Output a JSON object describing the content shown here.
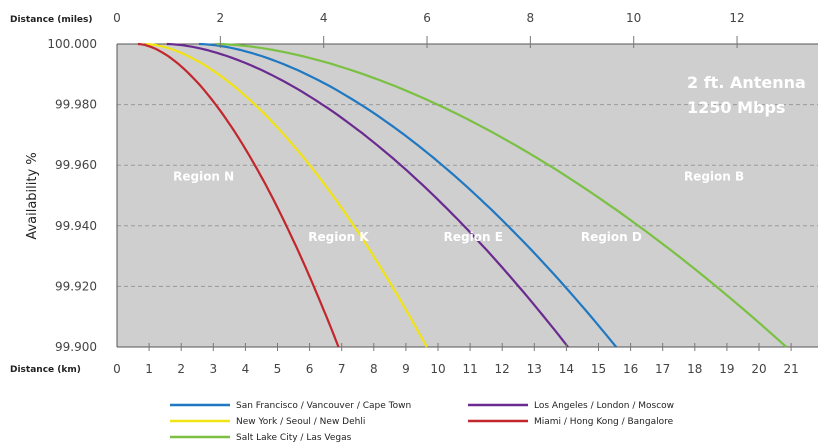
{
  "chart_data": {
    "type": "line",
    "ylabel": "Availability %",
    "top_axis_label": "Distance (miles)",
    "bottom_axis_label": "Distance (km)",
    "top_ticks": [
      "0",
      "2",
      "4",
      "6",
      "8",
      "10",
      "12"
    ],
    "top_tick_values": [
      0,
      2,
      4,
      6,
      8,
      10,
      12
    ],
    "xticks": [
      "0",
      "1",
      "2",
      "3",
      "4",
      "5",
      "6",
      "7",
      "8",
      "9",
      "10",
      "11",
      "12",
      "13",
      "14",
      "15",
      "16",
      "17",
      "18",
      "19",
      "20",
      "21"
    ],
    "yticks": [
      "99.900",
      "99.920",
      "99.940",
      "99.960",
      "99.980",
      "100.000"
    ],
    "ytick_values": [
      99.9,
      99.92,
      99.94,
      99.96,
      99.98,
      100.0
    ],
    "xlim": [
      0,
      21
    ],
    "ylim": [
      99.9,
      100.0
    ],
    "grid": true,
    "annotation_lines": [
      "2 ft. Antenna",
      "1250 Mbps"
    ],
    "regions": [
      {
        "label": "Region N",
        "x": 2.7,
        "y": 99.955
      },
      {
        "label": "Region K",
        "x": 6.9,
        "y": 99.935
      },
      {
        "label": "Region E",
        "x": 11.1,
        "y": 99.935
      },
      {
        "label": "Region D",
        "x": 15.4,
        "y": 99.935
      },
      {
        "label": "Region B",
        "x": 18.6,
        "y": 99.955
      }
    ],
    "series": [
      {
        "name": "San Francisco / Vancouver / Cape Town",
        "color": "#1f78c1",
        "x0": 2.55,
        "x1": 15.55
      },
      {
        "name": "Los Angeles / London / Moscow",
        "color": "#6a2a8f",
        "x0": 1.55,
        "x1": 14.05
      },
      {
        "name": "New York / Seoul / New Dehli",
        "color": "#f2e414",
        "x0": 0.9,
        "x1": 9.65
      },
      {
        "name": "Miami / Hong Kong / Bangalore",
        "color": "#c1272d",
        "x0": 0.65,
        "x1": 6.9
      },
      {
        "name": "Salt Lake City / Las Vegas",
        "color": "#7ac143",
        "x0": 3.1,
        "x1": 20.85
      }
    ]
  }
}
